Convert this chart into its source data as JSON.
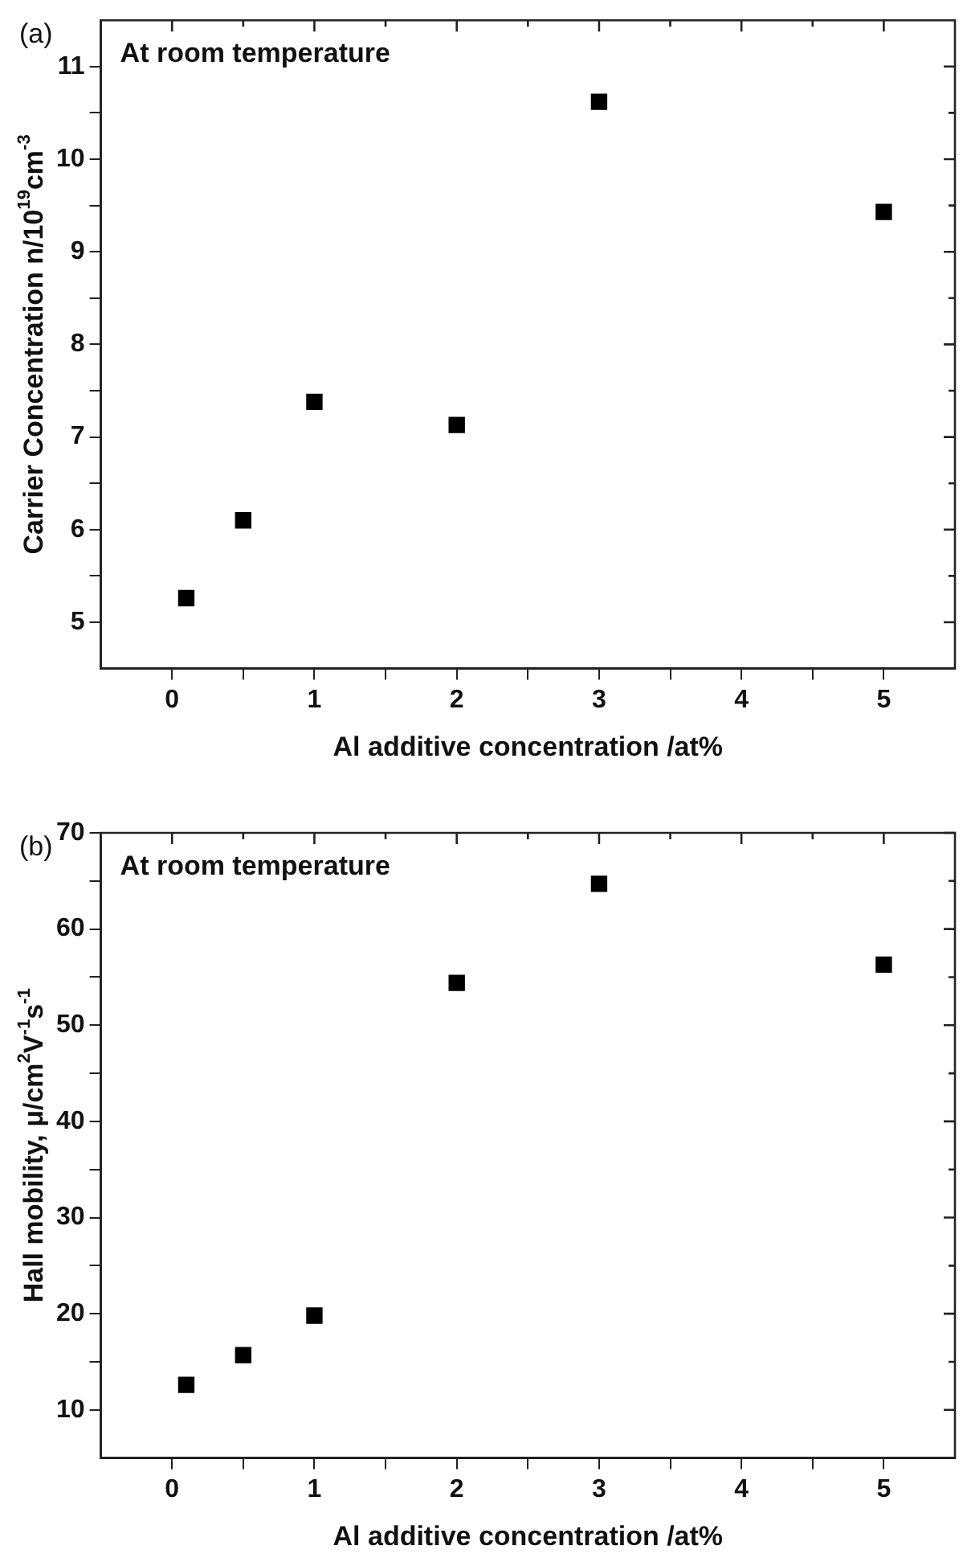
{
  "chart_data": [
    {
      "type": "scatter",
      "annotations": [
        "(a)",
        "At room temperature"
      ],
      "xlabel": "Al additive concentration /at%",
      "ylabel": "Carrier Concentration n/10$^{19}$cm$^{-3}$",
      "x": [
        0.1,
        0.5,
        1,
        2,
        3,
        5
      ],
      "series": [
        {
          "color": "#000000",
          "values": [
            5.26,
            6.1,
            7.38,
            7.13,
            10.62,
            9.43
          ]
        }
      ],
      "xlim": [
        -0.5,
        5.5
      ],
      "xticks": [
        0,
        {
          "value": 0.5,
          "label": null
        },
        1,
        {
          "value": 1.5,
          "label": null
        },
        2,
        {
          "value": 2.5,
          "label": null
        },
        3,
        {
          "value": 3.5,
          "label": null
        },
        4,
        {
          "value": 4.5,
          "label": null
        },
        5
      ],
      "ylim": [
        4.5,
        11.5
      ],
      "yticks": [
        5,
        {
          "value": 5.5,
          "label": null
        },
        6,
        {
          "value": 6.5,
          "label": null
        },
        7,
        {
          "value": 7.5,
          "label": null
        },
        8,
        {
          "value": 8.5,
          "label": null
        },
        9,
        {
          "value": 9.5,
          "label": null
        },
        10,
        {
          "value": 10.5,
          "label": null
        },
        11
      ],
      "grid": false,
      "legend": false,
      "marker": "square"
    },
    {
      "type": "scatter",
      "annotations": [
        "(b)",
        "At room temperature"
      ],
      "xlabel": "Al additive concentration /at%",
      "ylabel": "Hall mobility, μ/cm$^{2}$V$^{-1}$s$^{-1}$",
      "x": [
        0.1,
        0.5,
        1,
        2,
        3,
        5
      ],
      "series": [
        {
          "color": "#000000",
          "values": [
            12.6,
            15.7,
            19.8,
            54.4,
            64.7,
            56.3
          ]
        }
      ],
      "xlim": [
        -0.5,
        5.5
      ],
      "xticks": [
        0,
        {
          "value": 0.5,
          "label": null
        },
        1,
        {
          "value": 1.5,
          "label": null
        },
        2,
        {
          "value": 2.5,
          "label": null
        },
        3,
        {
          "value": 3.5,
          "label": null
        },
        4,
        {
          "value": 4.5,
          "label": null
        },
        5
      ],
      "ylim": [
        5,
        70
      ],
      "yticks": [
        10,
        {
          "value": 15,
          "label": null
        },
        20,
        {
          "value": 25,
          "label": null
        },
        30,
        {
          "value": 35,
          "label": null
        },
        40,
        {
          "value": 45,
          "label": null
        },
        50,
        {
          "value": 55,
          "label": null
        },
        60,
        {
          "value": 65,
          "label": null
        },
        70
      ],
      "grid": false,
      "legend": false,
      "marker": "square"
    }
  ]
}
